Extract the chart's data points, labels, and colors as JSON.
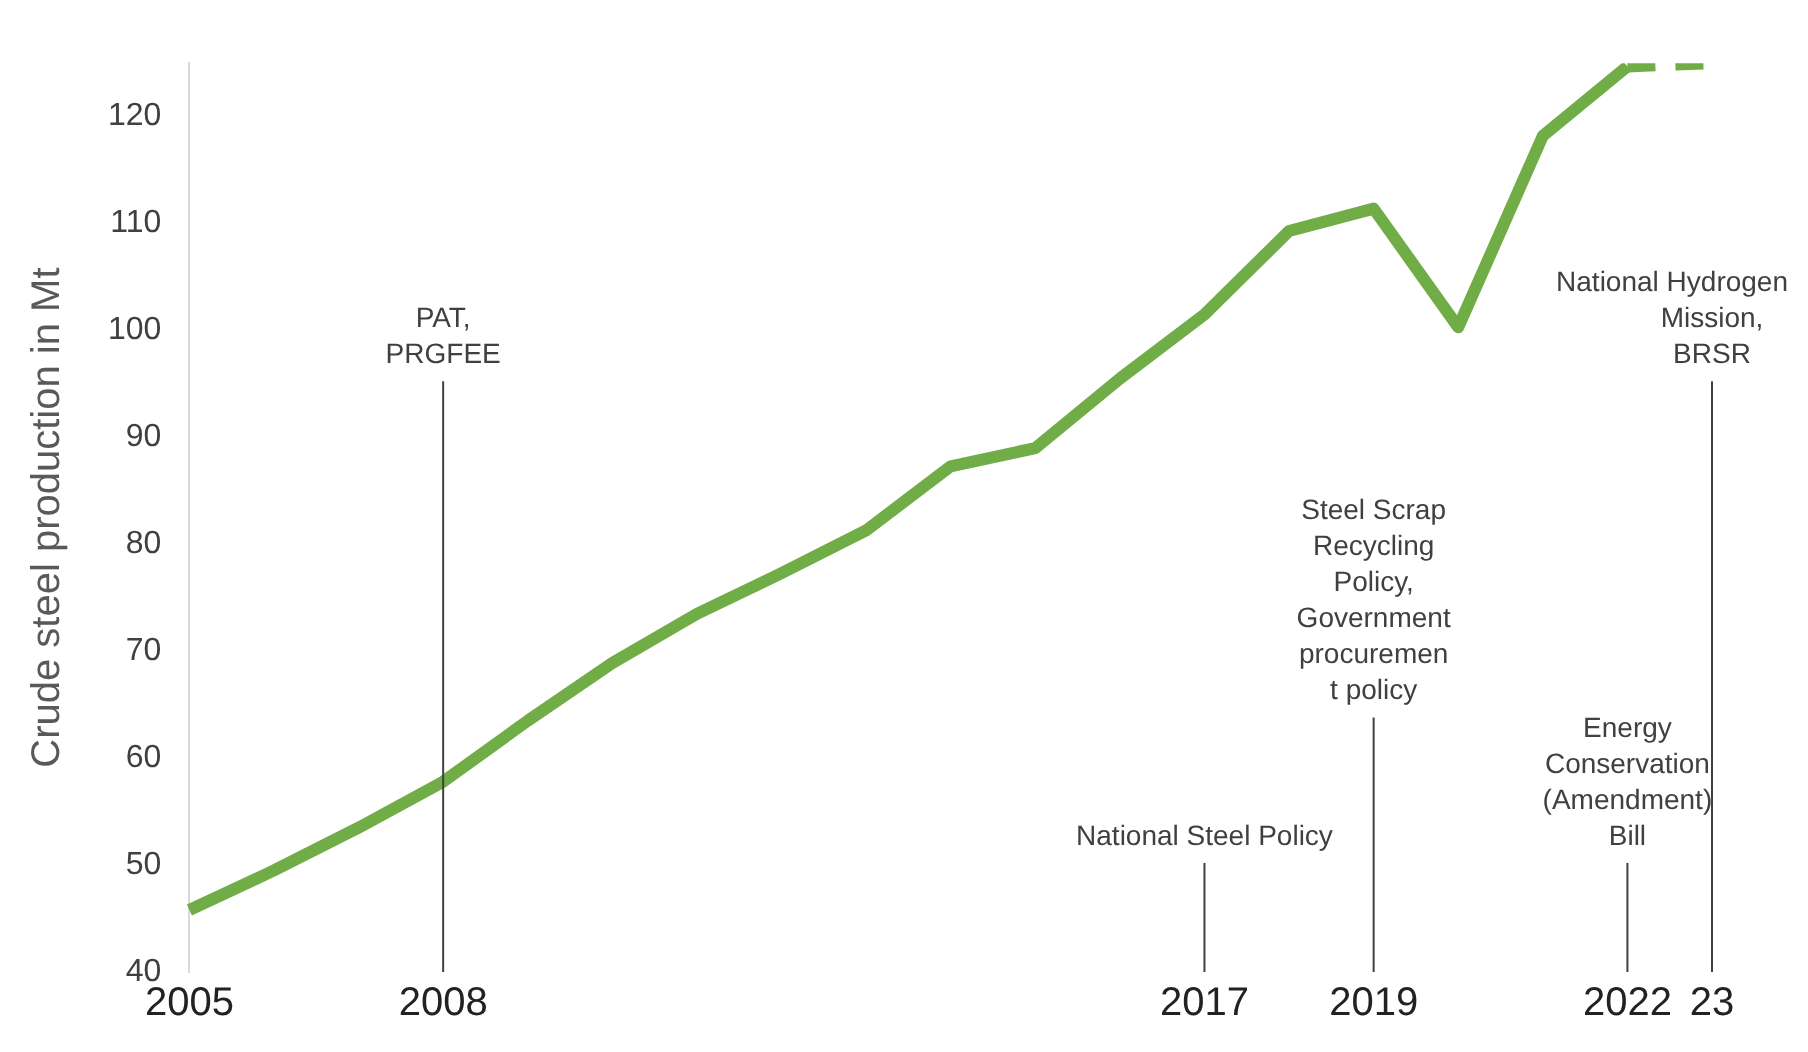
{
  "chart_data": {
    "type": "line",
    "ylabel": "Crude steel production in Mt",
    "categories": [
      "2005",
      null,
      null,
      "2008",
      null,
      null,
      null,
      null,
      null,
      null,
      null,
      null,
      "2017",
      null,
      "2019",
      null,
      null,
      "2022",
      "23"
    ],
    "series": [
      {
        "color": "#70ad47",
        "line_style": "solid",
        "values": [
          45.8,
          49.5,
          53.5,
          57.8,
          63.5,
          68.9,
          73.5,
          77.3,
          81.3,
          87.3,
          89.0,
          95.5,
          101.5,
          109.3,
          111.4,
          100.3,
          118.2,
          124.7,
          null
        ]
      },
      {
        "color": "#70ad47",
        "line_style": "dashed",
        "values": [
          null,
          null,
          null,
          null,
          null,
          null,
          null,
          null,
          null,
          null,
          null,
          null,
          null,
          null,
          null,
          null,
          null,
          124.7,
          125.0
        ]
      }
    ],
    "ylim": [
      40,
      125
    ],
    "yticks": [
      40,
      50,
      60,
      70,
      80,
      90,
      100,
      110,
      120
    ],
    "grid": false,
    "legend": false,
    "marker": "none",
    "ref_lines": [
      {
        "axis": "x",
        "value": "2008",
        "label": "PAT,\nPRGFEE",
        "color": "#404040"
      },
      {
        "axis": "x",
        "value": "2017",
        "label": "National Steel Policy",
        "color": "#404040"
      },
      {
        "axis": "x",
        "value": "2019",
        "label": "Steel Scrap\nRecycling\nPolicy,\nGovernment\nprocuremen\nt policy",
        "color": "#404040"
      },
      {
        "axis": "x",
        "value": "2022",
        "label": "Energy\nConservation\n(Amendment)\nBill",
        "color": "#404040"
      },
      {
        "axis": "x",
        "value": "23",
        "label": "National Hydrogen\nMission,\nBRSR",
        "color": "#404040"
      }
    ]
  }
}
